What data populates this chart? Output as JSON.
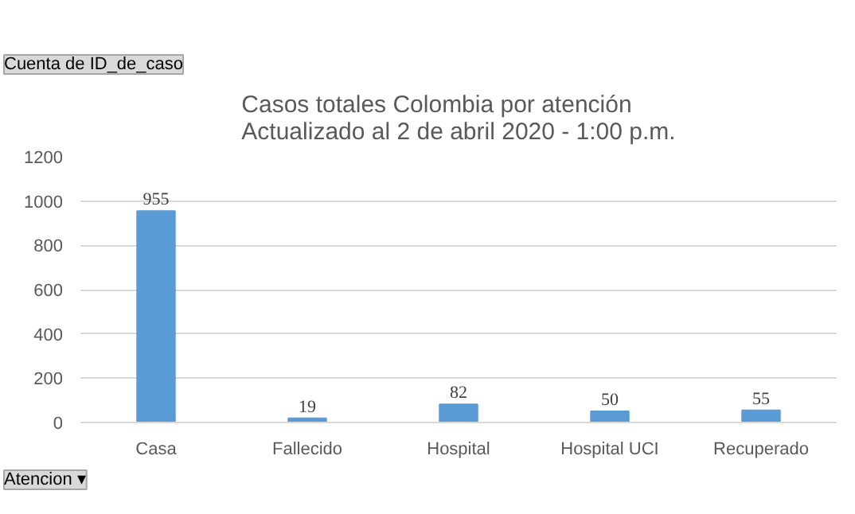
{
  "chart_data": {
    "type": "bar",
    "title": "Casos totales Colombia por atención\nActualizado al 2 de abril 2020 - 1:00 p.m.",
    "categories": [
      "Casa",
      "Fallecido",
      "Hospital",
      "Hospital UCI",
      "Recuperado"
    ],
    "values": [
      955,
      19,
      82,
      50,
      55
    ],
    "color": "#5b9bd5",
    "ylim": [
      0,
      1200
    ],
    "yticks": [
      0,
      200,
      400,
      600,
      800,
      1000,
      1200
    ],
    "grid": "y",
    "data_labels": true,
    "annotations": [
      "Cuenta de ID_de_caso",
      "Atencion ▾"
    ]
  }
}
